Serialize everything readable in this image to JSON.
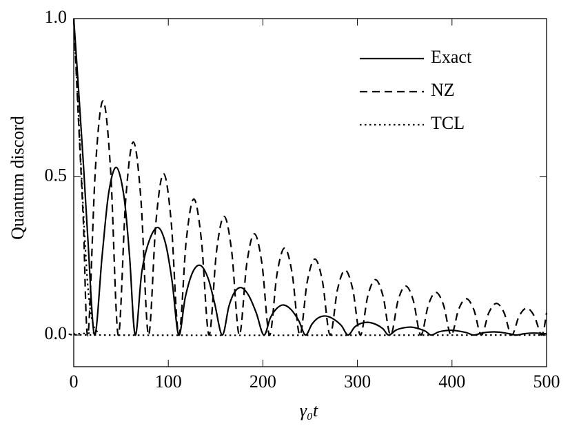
{
  "chart_data": {
    "type": "line",
    "xlabel": "γ₀t",
    "ylabel": "Quantum discord",
    "xlim": [
      0,
      500
    ],
    "ylim": [
      -0.1,
      1.0
    ],
    "xticks": [
      0,
      100,
      200,
      300,
      400,
      500
    ],
    "yticks": [
      {
        "value": 0,
        "label": "0.0"
      },
      {
        "value": 0.5,
        "label": "0.5"
      },
      {
        "value": 1,
        "label": "1.0"
      }
    ],
    "legend": "upper right",
    "series": [
      {
        "name": "Exact",
        "style": "solid",
        "color": "#000000",
        "x": [
          0,
          5,
          10,
          15,
          22,
          30,
          37,
          45,
          53,
          59,
          65,
          72,
          80,
          89,
          97,
          104,
          111,
          118,
          126,
          134,
          142,
          149,
          157,
          164,
          170,
          177,
          185,
          193,
          201,
          208,
          215,
          222,
          230,
          238,
          245,
          252,
          259,
          267,
          275,
          283,
          290,
          297,
          304,
          312,
          320,
          327,
          333,
          341,
          349,
          357,
          365,
          372,
          378,
          386,
          393,
          400,
          408,
          416,
          423,
          431,
          438,
          445,
          453,
          461,
          468,
          476,
          483,
          490,
          500
        ],
        "values": [
          1.0,
          0.78,
          0.55,
          0.3,
          0,
          0.25,
          0.45,
          0.53,
          0.44,
          0.25,
          0,
          0.2,
          0.3,
          0.34,
          0.29,
          0.17,
          0,
          0.12,
          0.2,
          0.22,
          0.18,
          0.1,
          0,
          0.09,
          0.135,
          0.15,
          0.125,
          0.07,
          0,
          0.055,
          0.085,
          0.095,
          0.08,
          0.045,
          0,
          0.035,
          0.055,
          0.06,
          0.05,
          0.03,
          0,
          0.025,
          0.037,
          0.04,
          0.033,
          0.02,
          0,
          0.016,
          0.023,
          0.025,
          0.02,
          0.012,
          0,
          0.01,
          0.014,
          0.015,
          0.012,
          0.007,
          0,
          0.006,
          0.009,
          0.01,
          0.008,
          0.004,
          0,
          0.004,
          0.006,
          0.006,
          0.004
        ]
      },
      {
        "name": "NZ",
        "style": "dashed",
        "color": "#000000",
        "x": [
          0,
          5,
          10,
          15,
          23,
          31,
          39,
          47,
          55,
          63,
          71,
          79,
          87,
          95,
          103,
          111,
          119,
          127,
          135,
          143,
          151,
          159,
          167,
          175,
          183,
          191,
          199,
          207,
          215,
          223,
          231,
          239,
          247,
          255,
          263,
          271,
          279,
          287,
          295,
          303,
          311,
          319,
          327,
          335,
          343,
          351,
          359,
          367,
          375,
          383,
          391,
          399,
          407,
          415,
          423,
          431,
          439,
          447,
          455,
          463,
          471,
          479,
          487,
          495,
          500
        ],
        "values": [
          1.0,
          0.68,
          0.37,
          0,
          0.53,
          0.74,
          0.52,
          0,
          0.43,
          0.61,
          0.43,
          0,
          0.36,
          0.51,
          0.36,
          0,
          0.3,
          0.43,
          0.3,
          0,
          0.265,
          0.375,
          0.265,
          0,
          0.226,
          0.32,
          0.226,
          0,
          0.194,
          0.275,
          0.194,
          0,
          0.17,
          0.24,
          0.17,
          0,
          0.145,
          0.205,
          0.145,
          0,
          0.124,
          0.175,
          0.124,
          0,
          0.11,
          0.155,
          0.11,
          0,
          0.095,
          0.135,
          0.095,
          0,
          0.081,
          0.115,
          0.081,
          0,
          0.071,
          0.1,
          0.071,
          0,
          0.06,
          0.085,
          0.06,
          0,
          0.07
        ]
      },
      {
        "name": "TCL",
        "style": "dotted",
        "color": "#000000",
        "x": [
          0,
          5,
          10,
          15,
          20,
          25,
          30,
          500
        ],
        "values": [
          1.0,
          0.7,
          0.4,
          0.15,
          0.04,
          0.01,
          0,
          0
        ]
      }
    ]
  }
}
